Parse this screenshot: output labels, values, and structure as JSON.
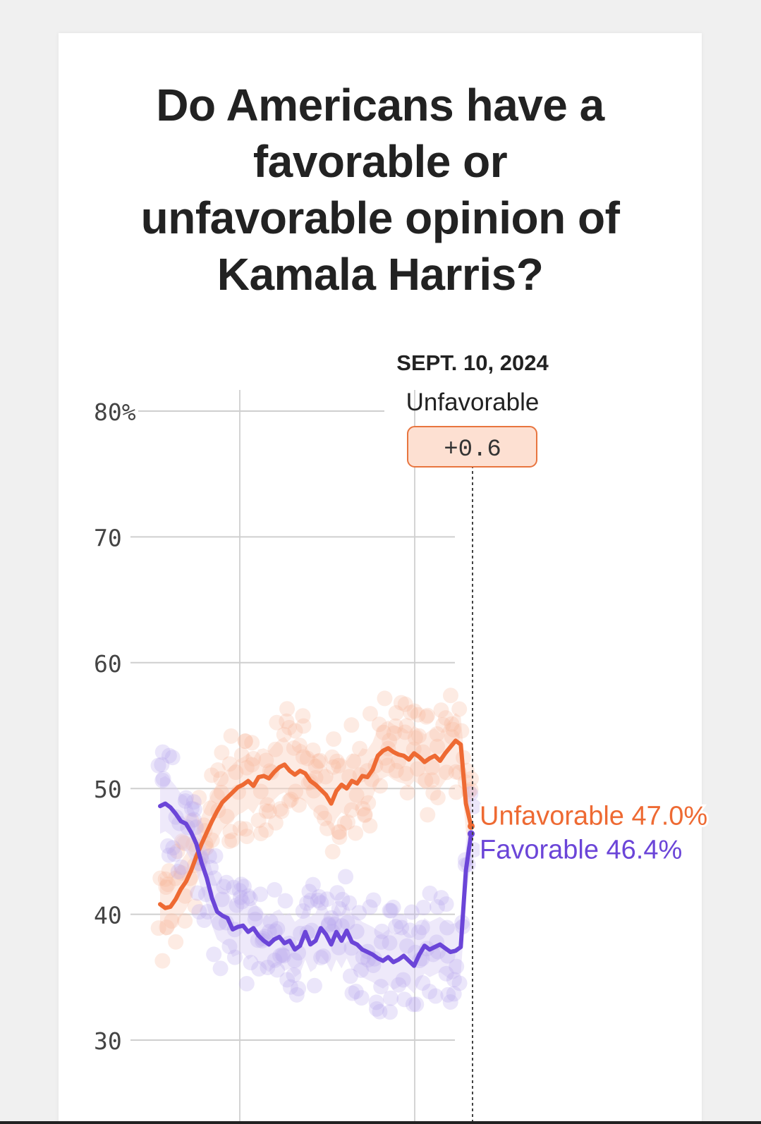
{
  "title_lines": [
    "Do Americans have a",
    "favorable or",
    "unfavorable opinion of",
    "Kamala Harris?"
  ],
  "chart_data": {
    "type": "line",
    "title": "Do Americans have a favorable or unfavorable opinion of Kamala Harris?",
    "ylim": [
      30,
      80
    ],
    "yticks": [
      80,
      70,
      60,
      50,
      40,
      30
    ],
    "ytick_labels": [
      "80%",
      "70",
      "60",
      "50",
      "40",
      "30"
    ],
    "grid": true,
    "annotation": {
      "date_label": "SEPT. 10, 2024",
      "leader_label": "Unfavorable",
      "margin_label": "+0.6"
    },
    "series": [
      {
        "name": "Unfavorable",
        "end_label": "Unfavorable 47.0%",
        "color": "#ee6a33",
        "values": [
          40.8,
          40.5,
          40.6,
          41.2,
          42.0,
          42.6,
          43.5,
          44.6,
          45.6,
          46.5,
          47.4,
          48.2,
          48.9,
          49.3,
          49.7,
          50.1,
          50.3,
          50.6,
          50.2,
          50.9,
          51.0,
          50.8,
          51.3,
          51.7,
          51.9,
          51.4,
          51.1,
          51.4,
          51.2,
          50.6,
          50.3,
          49.9,
          49.5,
          48.8,
          49.8,
          50.3,
          50.0,
          50.6,
          50.4,
          51.0,
          50.9,
          51.5,
          52.6,
          53.0,
          53.2,
          52.9,
          52.7,
          52.6,
          52.3,
          52.8,
          52.5,
          52.1,
          52.4,
          52.6,
          52.2,
          52.8,
          53.3,
          53.8,
          53.5,
          48.8,
          47.0
        ]
      },
      {
        "name": "Favorable",
        "end_label": "Favorable 46.4%",
        "color": "#6b45d8",
        "values": [
          48.6,
          48.8,
          48.5,
          48.0,
          47.4,
          47.2,
          46.5,
          45.6,
          44.1,
          42.9,
          41.3,
          40.2,
          39.9,
          39.7,
          38.8,
          39.0,
          39.1,
          38.6,
          38.9,
          38.3,
          37.9,
          37.6,
          38.0,
          38.2,
          37.7,
          37.9,
          37.2,
          37.5,
          38.6,
          37.6,
          37.9,
          38.9,
          38.4,
          37.6,
          38.6,
          37.9,
          38.7,
          37.8,
          37.6,
          37.2,
          37.0,
          36.8,
          36.5,
          36.3,
          36.6,
          36.2,
          36.4,
          36.7,
          36.3,
          35.9,
          36.8,
          37.5,
          37.2,
          37.4,
          37.6,
          37.3,
          37.0,
          37.1,
          37.4,
          43.5,
          46.4
        ]
      }
    ]
  }
}
